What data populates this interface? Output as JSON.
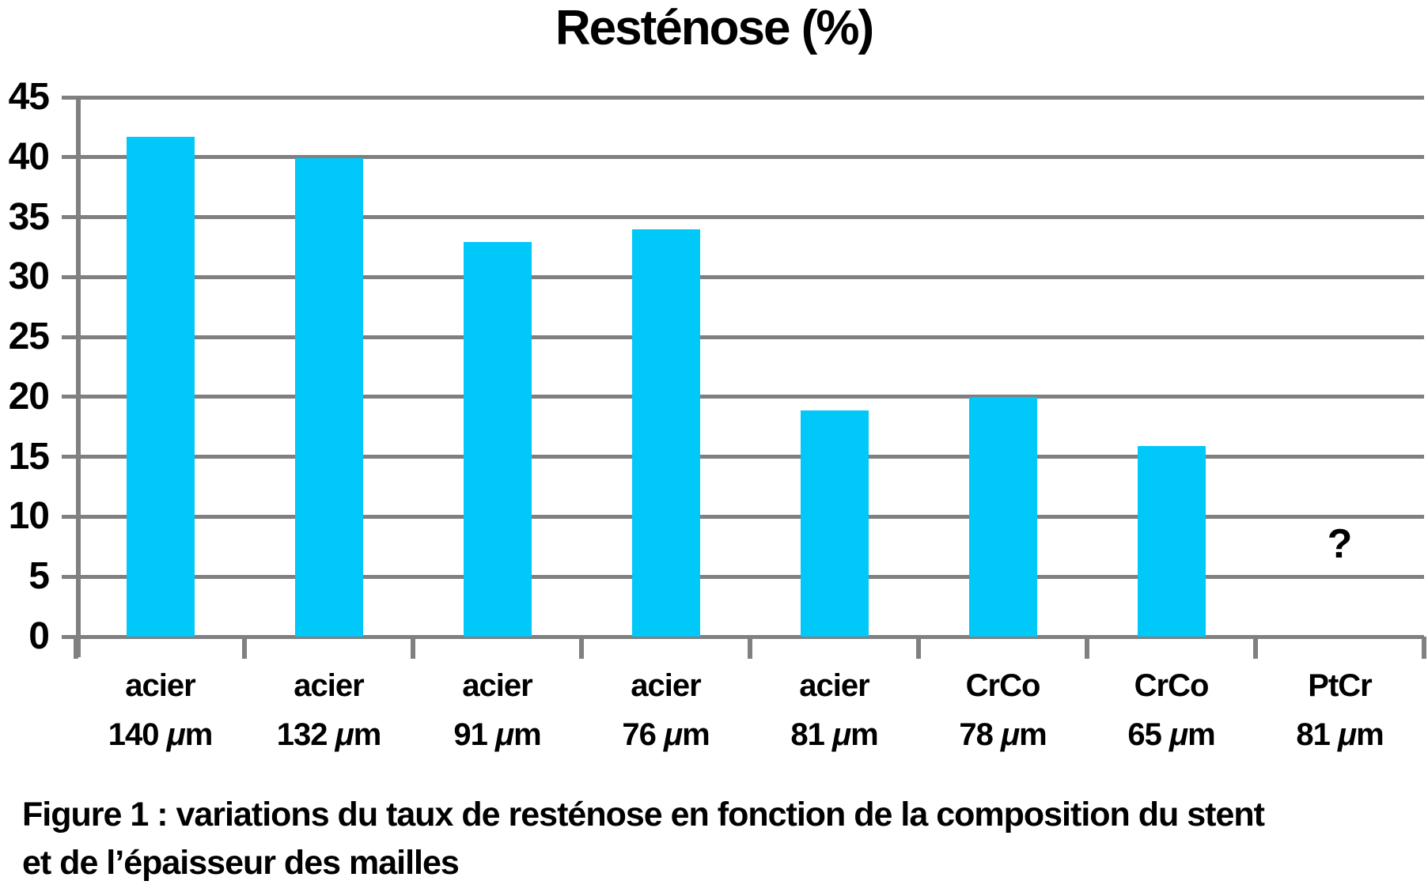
{
  "title": "Resténose (%)",
  "caption": {
    "line1": "Figure 1 : variations du taux de resténose en fonction de la composition du stent",
    "line2": "et de l’épaisseur des mailles"
  },
  "colors": {
    "bar": "#00C8F8",
    "grid": "#808080",
    "text": "#000000",
    "background": "#FFFFFF"
  },
  "chart_data": {
    "type": "bar",
    "title": "Resténose (%)",
    "categories": [
      "acier 140 μm",
      "acier 132 μm",
      "acier 91 μm",
      "acier 76 μm",
      "acier 81 μm",
      "CrCo 78 μm",
      "CrCo 65 μm",
      "PtCr 81 μm"
    ],
    "categories_split": [
      {
        "material": "acier",
        "thickness": "140 μm"
      },
      {
        "material": "acier",
        "thickness": "132 μm"
      },
      {
        "material": "acier",
        "thickness": "91 μm"
      },
      {
        "material": "acier",
        "thickness": "76 μm"
      },
      {
        "material": "acier",
        "thickness": "81 μm"
      },
      {
        "material": "CrCo",
        "thickness": "78 μm"
      },
      {
        "material": "CrCo",
        "thickness": "65 μm"
      },
      {
        "material": "PtCr",
        "thickness": "81 μm"
      }
    ],
    "values": [
      41.7,
      39.9,
      32.9,
      34.0,
      18.9,
      20.0,
      15.9,
      null
    ],
    "missing_value_label": "?",
    "xlabel": "",
    "ylabel": "",
    "ylim": [
      0,
      45
    ],
    "ytick_step": 5,
    "yticks": [
      0,
      5,
      10,
      15,
      20,
      25,
      30,
      35,
      40,
      45
    ],
    "grid": "horizontal",
    "legend": "none",
    "bar_color": "#00C8F8"
  }
}
